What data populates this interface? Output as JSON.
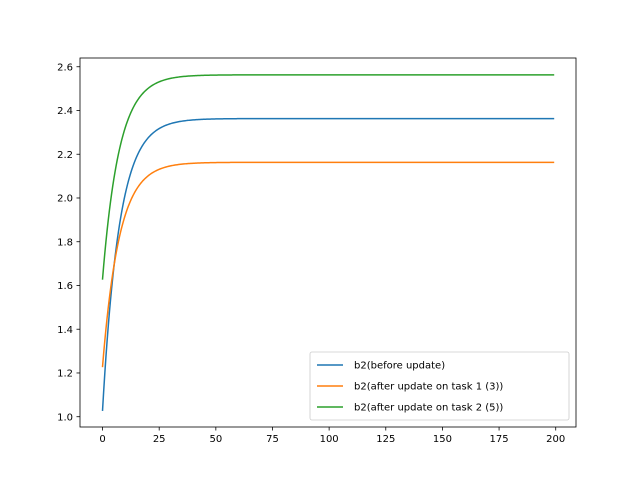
{
  "chart_data": {
    "type": "line",
    "title": "",
    "xlabel": "",
    "ylabel": "",
    "xlim": [
      -9.95,
      208.95
    ],
    "ylim": [
      0.953,
      2.64
    ],
    "x_ticks": [
      0,
      25,
      50,
      75,
      100,
      125,
      150,
      175,
      200
    ],
    "y_ticks": [
      1.0,
      1.2,
      1.4,
      1.6,
      1.8,
      2.0,
      2.2,
      2.4,
      2.6
    ],
    "x_tick_labels": [
      "0",
      "25",
      "50",
      "75",
      "100",
      "125",
      "150",
      "175",
      "200"
    ],
    "y_tick_labels": [
      "1.0",
      "1.2",
      "1.4",
      "1.6",
      "1.8",
      "2.0",
      "2.2",
      "2.4",
      "2.6"
    ],
    "grid": false,
    "legend_position": "lower-right",
    "x_start": 0,
    "x_end": 199,
    "series": [
      {
        "name": "b2(before update)",
        "color": "#1f77b4",
        "start": 1.03,
        "asymptote": 2.363,
        "rate": 0.135,
        "x": [
          0,
          5,
          10,
          15,
          20,
          25,
          30,
          40,
          50,
          75,
          100,
          150,
          199
        ],
        "values": [
          1.03,
          1.68,
          2.02,
          2.19,
          2.28,
          2.32,
          2.34,
          2.36,
          2.363,
          2.363,
          2.363,
          2.363,
          2.363
        ]
      },
      {
        "name": "b2(after update on task 1 (3))",
        "color": "#ff7f0e",
        "start": 1.23,
        "asymptote": 2.163,
        "rate": 0.135,
        "x": [
          0,
          5,
          10,
          15,
          20,
          25,
          30,
          40,
          50,
          75,
          100,
          150,
          199
        ],
        "values": [
          1.23,
          1.68,
          1.92,
          2.04,
          2.1,
          2.13,
          2.15,
          2.16,
          2.163,
          2.163,
          2.163,
          2.163,
          2.163
        ]
      },
      {
        "name": "b2(after update on task 2 (5))",
        "color": "#2ca02c",
        "start": 1.63,
        "asymptote": 2.563,
        "rate": 0.135,
        "x": [
          0,
          5,
          10,
          15,
          20,
          25,
          30,
          40,
          50,
          75,
          100,
          150,
          199
        ],
        "values": [
          1.63,
          2.08,
          2.32,
          2.44,
          2.5,
          2.53,
          2.55,
          2.56,
          2.563,
          2.563,
          2.563,
          2.563,
          2.563
        ]
      }
    ]
  }
}
